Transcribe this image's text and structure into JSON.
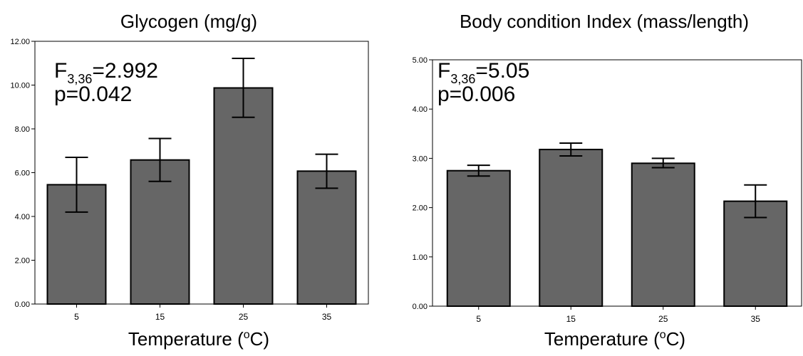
{
  "chart_data": [
    {
      "type": "bar",
      "title": "Glycogen (mg/g)",
      "xlabel": "Temperature (",
      "xlabel_sup": "o",
      "xlabel_end": "C)",
      "categories": [
        "5",
        "15",
        "25",
        "35"
      ],
      "values": [
        5.45,
        6.58,
        9.87,
        6.07
      ],
      "error_low": [
        4.2,
        5.6,
        8.53,
        5.29
      ],
      "error_high": [
        6.7,
        7.56,
        11.22,
        6.84
      ],
      "ylim": [
        0,
        12
      ],
      "yticks": [
        "0.00",
        "2.00",
        "4.00",
        "6.00",
        "8.00",
        "10.00",
        "12.00"
      ],
      "annotation": {
        "stat_main": "F",
        "stat_sub": "3,36",
        "stat_value": "=2.992",
        "p": "p=0.042"
      },
      "bar_color": "#666666"
    },
    {
      "type": "bar",
      "title": "Body condition Index (mass/length)",
      "xlabel": "Temperature (",
      "xlabel_sup": "o",
      "xlabel_end": "C)",
      "categories": [
        "5",
        "15",
        "25",
        "35"
      ],
      "values": [
        2.75,
        3.18,
        2.9,
        2.13
      ],
      "error_low": [
        2.64,
        3.05,
        2.81,
        1.8
      ],
      "error_high": [
        2.86,
        3.31,
        3.0,
        2.46
      ],
      "ylim": [
        0,
        5
      ],
      "yticks": [
        "0.00",
        "1.00",
        "2.00",
        "3.00",
        "4.00",
        "5.00"
      ],
      "annotation": {
        "stat_main": "F",
        "stat_sub": "3,36",
        "stat_value": "=5.05",
        "p": "p=0.006"
      },
      "bar_color": "#666666"
    }
  ]
}
